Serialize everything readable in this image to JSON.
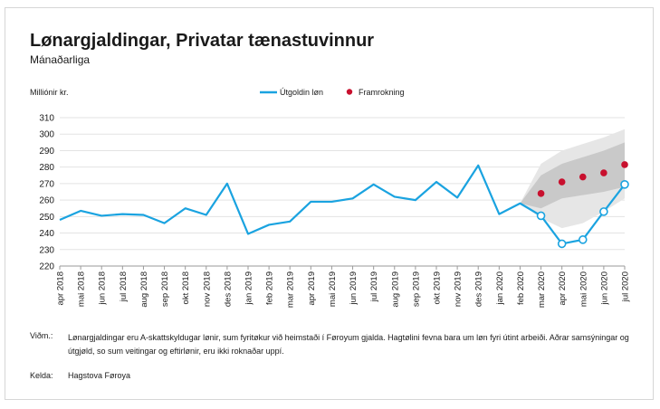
{
  "title": "Lønargjaldingar, Privatar tænastuvinnur",
  "subtitle": "Mánaðarliga",
  "notes_label": "Viðm.:",
  "notes_text": "Lønargjaldingar eru A-skattskyldugar lønir, sum fyritøkur við heimstaði í Føroyum gjalda. Hagtølini fevna bara um løn fyri útint arbeiði. Aðrar samsýningar og útgjøld, so sum veitingar og eftirlønir, eru ikki roknaðar uppí.",
  "source_label": "Kelda:",
  "source_text": "Hagstova Føroya",
  "colors": {
    "line": "#1aa3e0",
    "forecast": "#c8102e",
    "band_outer": "#e6e6e6",
    "band_inner": "#c9c9c9",
    "grid": "#e3e3e3"
  },
  "chart_data": {
    "type": "line",
    "ylabel": "Milliónir kr.",
    "ylim": [
      220,
      310
    ],
    "yticks": [
      220,
      230,
      240,
      250,
      260,
      270,
      280,
      290,
      300,
      310
    ],
    "grid": true,
    "legend_position": "top-center",
    "categories": [
      "apr 2018",
      "mai 2018",
      "jun 2018",
      "jul 2018",
      "aug 2018",
      "sep 2018",
      "okt 2018",
      "nov 2018",
      "des 2018",
      "jan 2019",
      "feb 2019",
      "mar 2019",
      "apr 2019",
      "mai 2019",
      "jun 2019",
      "jul 2019",
      "aug 2019",
      "sep 2019",
      "okt 2019",
      "nov 2019",
      "des 2019",
      "jan 2020",
      "feb 2020",
      "mar 2020",
      "apr 2020",
      "mai 2020",
      "jun 2020",
      "jul 2020"
    ],
    "series": [
      {
        "name": "Útgoldin løn",
        "marker": "none-then-open-circle",
        "values": [
          248,
          253.5,
          250.5,
          251.5,
          251,
          246,
          255,
          251,
          270,
          239.5,
          245,
          247,
          259,
          259,
          261,
          269.5,
          262,
          260,
          271,
          261.5,
          281,
          251.5,
          258,
          250.5,
          233.5,
          236,
          253,
          269.5
        ]
      },
      {
        "name": "Framrokning",
        "marker": "filled-circle",
        "values": [
          null,
          null,
          null,
          null,
          null,
          null,
          null,
          null,
          null,
          null,
          null,
          null,
          null,
          null,
          null,
          null,
          null,
          null,
          null,
          null,
          null,
          null,
          null,
          264,
          271,
          274,
          276.5,
          281.5
        ]
      }
    ],
    "forecast_band_outer": {
      "categories": [
        "feb 2020",
        "mar 2020",
        "apr 2020",
        "mai 2020",
        "jun 2020",
        "jul 2020"
      ],
      "lower": [
        258,
        249,
        243,
        246,
        253,
        261
      ],
      "upper": [
        258,
        282,
        290,
        294,
        298,
        303
      ]
    },
    "forecast_band_inner": {
      "categories": [
        "feb 2020",
        "mar 2020",
        "apr 2020",
        "mai 2020",
        "jun 2020",
        "jul 2020"
      ],
      "lower": [
        258,
        255,
        261,
        263,
        265,
        268
      ],
      "upper": [
        258,
        275,
        282,
        286,
        290,
        295
      ]
    }
  }
}
